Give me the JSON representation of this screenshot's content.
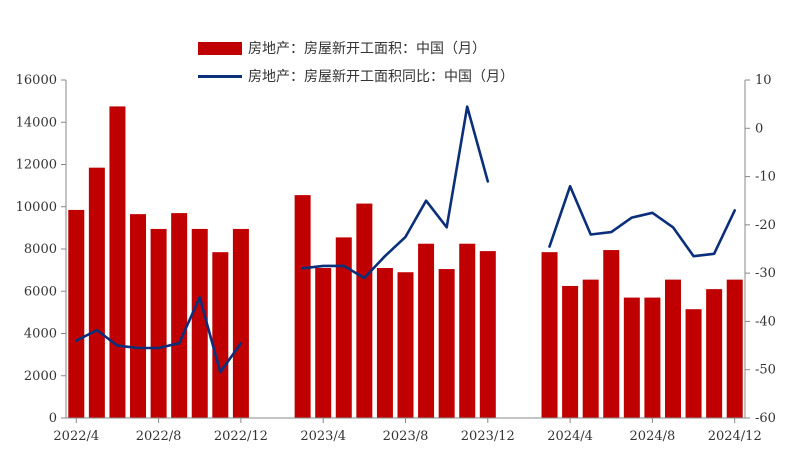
{
  "chart_data": {
    "type": "bar+line",
    "title": "",
    "legend_position": "top-center",
    "x_tick_labels": [
      "2022/4",
      "2022/8",
      "2022/12",
      "2023/4",
      "2023/8",
      "2023/12",
      "2024/4",
      "2024/8",
      "2024/12"
    ],
    "y_left": {
      "ylim": [
        0,
        16000
      ],
      "ticks": [
        "0",
        "2000",
        "4000",
        "6000",
        "8000",
        "10000",
        "12000",
        "14000",
        "16000"
      ]
    },
    "y_right": {
      "ylim": [
        -60,
        10
      ],
      "ticks": [
        "-60",
        "-50",
        "-40",
        "-30",
        "-20",
        "-10",
        "0",
        "10"
      ]
    },
    "x": [
      "2022/4",
      "2022/5",
      "2022/6",
      "2022/7",
      "2022/8",
      "2022/9",
      "2022/10",
      "2022/11",
      "2022/12",
      "2023/1",
      "2023/2",
      "2023/3",
      "2023/4",
      "2023/5",
      "2023/6",
      "2023/7",
      "2023/8",
      "2023/9",
      "2023/10",
      "2023/11",
      "2023/12",
      "2024/1",
      "2024/2",
      "2024/3",
      "2024/4",
      "2024/5",
      "2024/6",
      "2024/7",
      "2024/8",
      "2024/9",
      "2024/10",
      "2024/11",
      "2024/12"
    ],
    "series": [
      {
        "name": "房地产：房屋新开工面积：中国（月）",
        "type": "bar",
        "axis": "left",
        "color": "#c00000",
        "values": [
          9850,
          11850,
          14750,
          9650,
          8950,
          9700,
          8950,
          7850,
          8950,
          null,
          null,
          10550,
          7100,
          8550,
          10150,
          7100,
          6900,
          8250,
          7050,
          8250,
          7900,
          null,
          null,
          7850,
          6250,
          6550,
          7950,
          5700,
          5700,
          6550,
          5150,
          6100,
          6550
        ]
      },
      {
        "name": "房地产：房屋新开工面积同比：中国（月）",
        "type": "line",
        "axis": "right",
        "color": "#0b2f7a",
        "values": [
          -44.0,
          -41.8,
          -45.0,
          -45.5,
          -45.5,
          -44.5,
          -35.0,
          -50.5,
          -44.5,
          null,
          null,
          -29.0,
          -28.5,
          -28.5,
          -31.0,
          -26.5,
          -22.5,
          -15.0,
          -20.5,
          4.5,
          -11.0,
          null,
          null,
          -24.5,
          -12.0,
          -22.0,
          -21.5,
          -18.5,
          -17.5,
          -20.5,
          -26.5,
          -26.0,
          -17.0
        ]
      }
    ]
  }
}
